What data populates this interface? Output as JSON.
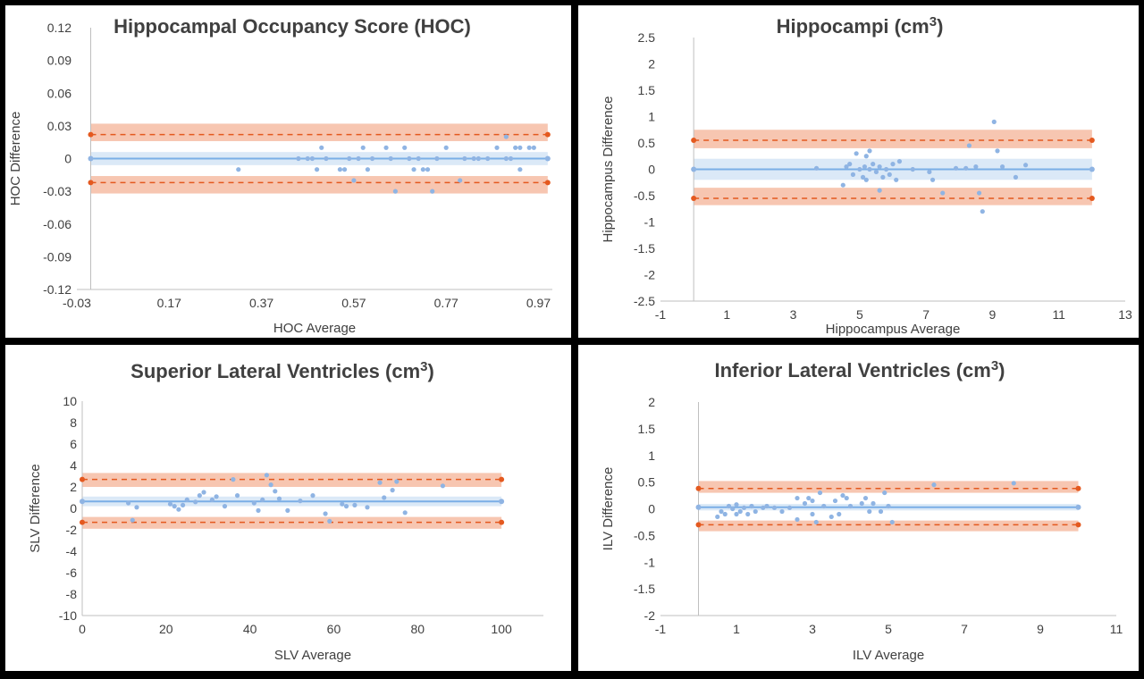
{
  "chart_data": [
    {
      "type": "scatter",
      "title": "Hippocampal Occupancy Score (HOC)",
      "title_superscript": "",
      "title_suffix": "",
      "xlabel": "HOC Average",
      "ylabel": "HOC Difference",
      "xlim": [
        -0.03,
        1.0
      ],
      "ylim": [
        -0.12,
        0.12
      ],
      "xticks": [
        -0.03,
        0.17,
        0.37,
        0.57,
        0.77,
        0.97
      ],
      "yticks": [
        -0.12,
        -0.09,
        -0.06,
        -0.03,
        0,
        0.03,
        0.06,
        0.09,
        0.12
      ],
      "xtick_labels": [
        "-0.03",
        "0.17",
        "0.37",
        "0.57",
        "0.77",
        "0.97"
      ],
      "ytick_labels": [
        "-0.12",
        "-0.09",
        "-0.06",
        "-0.03",
        "0",
        "0.03",
        "0.06",
        "0.09",
        "0.12"
      ],
      "mean_line": 0.0,
      "mean_band": [
        -0.006,
        0.006
      ],
      "upper_loa": 0.022,
      "upper_band": [
        0.016,
        0.032
      ],
      "lower_loa": -0.022,
      "lower_band": [
        -0.032,
        -0.016
      ],
      "line_x_range": [
        0.0,
        0.99
      ],
      "points": [
        [
          0.32,
          -0.01
        ],
        [
          0.45,
          0.0
        ],
        [
          0.47,
          0.0
        ],
        [
          0.48,
          0.0
        ],
        [
          0.49,
          -0.01
        ],
        [
          0.5,
          0.01
        ],
        [
          0.51,
          0.0
        ],
        [
          0.54,
          -0.01
        ],
        [
          0.55,
          -0.01
        ],
        [
          0.56,
          0.0
        ],
        [
          0.57,
          -0.02
        ],
        [
          0.58,
          0.0
        ],
        [
          0.59,
          0.01
        ],
        [
          0.6,
          -0.01
        ],
        [
          0.61,
          0.0
        ],
        [
          0.64,
          0.01
        ],
        [
          0.65,
          0.0
        ],
        [
          0.66,
          -0.03
        ],
        [
          0.68,
          0.01
        ],
        [
          0.69,
          0.0
        ],
        [
          0.7,
          -0.01
        ],
        [
          0.71,
          0.0
        ],
        [
          0.72,
          -0.01
        ],
        [
          0.73,
          -0.01
        ],
        [
          0.74,
          -0.03
        ],
        [
          0.75,
          0.0
        ],
        [
          0.77,
          0.01
        ],
        [
          0.8,
          -0.02
        ],
        [
          0.81,
          0.0
        ],
        [
          0.83,
          0.0
        ],
        [
          0.84,
          0.0
        ],
        [
          0.86,
          0.0
        ],
        [
          0.88,
          0.01
        ],
        [
          0.9,
          0.02
        ],
        [
          0.9,
          0.0
        ],
        [
          0.91,
          0.0
        ],
        [
          0.92,
          0.01
        ],
        [
          0.93,
          -0.01
        ],
        [
          0.93,
          0.01
        ],
        [
          0.95,
          0.01
        ],
        [
          0.96,
          0.01
        ]
      ],
      "colors": {
        "points": "#8fb4e3",
        "mean": "#7aaee6",
        "mean_band": "#dbe9f7",
        "loa": "#e4591f",
        "loa_band": "#f7c6b1"
      }
    },
    {
      "type": "scatter",
      "title": "Hippocampi (cm",
      "title_superscript": "3",
      "title_suffix": ")",
      "xlabel": "Hippocampus Average",
      "ylabel": "Hippocampus Difference",
      "xlim": [
        -1,
        13
      ],
      "ylim": [
        -2.5,
        2.5
      ],
      "xticks": [
        -1,
        1,
        3,
        5,
        7,
        9,
        11,
        13
      ],
      "yticks": [
        -2.5,
        -2,
        -1.5,
        -1,
        -0.5,
        0,
        0.5,
        1,
        1.5,
        2,
        2.5
      ],
      "xtick_labels": [
        "-1",
        "1",
        "3",
        "5",
        "7",
        "9",
        "11",
        "13"
      ],
      "ytick_labels": [
        "-2.5",
        "-2",
        "-1.5",
        "-1",
        "-0.5",
        "0",
        "0.5",
        "1",
        "1.5",
        "2",
        "2.5"
      ],
      "mean_line": 0.0,
      "mean_band": [
        -0.2,
        0.2
      ],
      "upper_loa": 0.55,
      "upper_band": [
        0.4,
        0.75
      ],
      "lower_loa": -0.55,
      "lower_band": [
        -0.68,
        -0.35
      ],
      "line_x_range": [
        0.0,
        12.0
      ],
      "points": [
        [
          3.7,
          0.02
        ],
        [
          4.5,
          -0.3
        ],
        [
          4.6,
          0.05
        ],
        [
          4.7,
          0.1
        ],
        [
          4.8,
          -0.1
        ],
        [
          4.9,
          0.3
        ],
        [
          5.0,
          0.0
        ],
        [
          5.1,
          -0.15
        ],
        [
          5.15,
          0.05
        ],
        [
          5.2,
          0.25
        ],
        [
          5.2,
          -0.2
        ],
        [
          5.3,
          0.35
        ],
        [
          5.3,
          0.0
        ],
        [
          5.4,
          0.1
        ],
        [
          5.5,
          -0.05
        ],
        [
          5.6,
          0.05
        ],
        [
          5.6,
          -0.4
        ],
        [
          5.7,
          -0.15
        ],
        [
          5.8,
          0.0
        ],
        [
          5.9,
          -0.1
        ],
        [
          6.0,
          0.1
        ],
        [
          6.1,
          -0.2
        ],
        [
          6.2,
          0.15
        ],
        [
          6.6,
          0.0
        ],
        [
          7.1,
          -0.05
        ],
        [
          7.2,
          -0.2
        ],
        [
          7.5,
          -0.45
        ],
        [
          7.9,
          0.02
        ],
        [
          8.2,
          0.02
        ],
        [
          8.3,
          0.45
        ],
        [
          8.5,
          0.05
        ],
        [
          8.6,
          -0.45
        ],
        [
          8.7,
          -0.8
        ],
        [
          9.05,
          0.9
        ],
        [
          9.15,
          0.35
        ],
        [
          9.3,
          0.05
        ],
        [
          9.7,
          -0.15
        ],
        [
          10.0,
          0.08
        ]
      ],
      "colors": {
        "points": "#8fb4e3",
        "mean": "#7aaee6",
        "mean_band": "#dbe9f7",
        "loa": "#e4591f",
        "loa_band": "#f7c6b1"
      }
    },
    {
      "type": "scatter",
      "title": "Superior Lateral Ventricles (cm",
      "title_superscript": "3",
      "title_suffix": ")",
      "xlabel": "SLV Average",
      "ylabel": "SLV Difference",
      "xlim": [
        0,
        110
      ],
      "ylim": [
        -10,
        10
      ],
      "xticks": [
        0,
        20,
        40,
        60,
        80,
        100
      ],
      "yticks": [
        -10,
        -8,
        -6,
        -4,
        -2,
        0,
        2,
        4,
        6,
        8,
        10
      ],
      "xtick_labels": [
        "0",
        "20",
        "40",
        "60",
        "80",
        "100"
      ],
      "ytick_labels": [
        "-10",
        "-8",
        "-6",
        "-4",
        "-2",
        "0",
        "2",
        "4",
        "6",
        "8",
        "10"
      ],
      "mean_line": 0.65,
      "mean_band": [
        0.2,
        1.1
      ],
      "upper_loa": 2.7,
      "upper_band": [
        2.0,
        3.3
      ],
      "lower_loa": -1.3,
      "lower_band": [
        -1.9,
        -0.8
      ],
      "line_x_range": [
        0,
        100
      ],
      "points": [
        [
          11,
          0.5
        ],
        [
          12,
          -1.1
        ],
        [
          13,
          0.1
        ],
        [
          21,
          0.4
        ],
        [
          22,
          0.2
        ],
        [
          23,
          -0.1
        ],
        [
          24,
          0.3
        ],
        [
          25,
          0.8
        ],
        [
          27,
          0.6
        ],
        [
          28,
          1.2
        ],
        [
          29,
          1.5
        ],
        [
          31,
          0.8
        ],
        [
          32,
          1.1
        ],
        [
          34,
          0.2
        ],
        [
          36,
          2.7
        ],
        [
          37,
          1.2
        ],
        [
          41,
          0.5
        ],
        [
          42,
          -0.2
        ],
        [
          43,
          0.8
        ],
        [
          44,
          3.1
        ],
        [
          45,
          2.2
        ],
        [
          46,
          1.6
        ],
        [
          47,
          0.9
        ],
        [
          49,
          -0.2
        ],
        [
          52,
          0.7
        ],
        [
          55,
          1.2
        ],
        [
          58,
          -0.5
        ],
        [
          59,
          -1.2
        ],
        [
          62,
          0.4
        ],
        [
          63,
          0.2
        ],
        [
          65,
          0.3
        ],
        [
          68,
          0.1
        ],
        [
          71,
          2.4
        ],
        [
          72,
          1.0
        ],
        [
          74,
          1.7
        ],
        [
          75,
          2.5
        ],
        [
          77,
          -0.4
        ],
        [
          86,
          2.1
        ]
      ],
      "colors": {
        "points": "#8fb4e3",
        "mean": "#7aaee6",
        "mean_band": "#dbe9f7",
        "loa": "#e4591f",
        "loa_band": "#f7c6b1"
      }
    },
    {
      "type": "scatter",
      "title": "Inferior Lateral Ventricles (cm",
      "title_superscript": "3",
      "title_suffix": ")",
      "xlabel": "ILV Average",
      "ylabel": "ILV Difference",
      "xlim": [
        -1,
        11
      ],
      "ylim": [
        -2,
        2
      ],
      "xticks": [
        -1,
        1,
        3,
        5,
        7,
        9,
        11
      ],
      "yticks": [
        -2,
        -1.5,
        -1,
        -0.5,
        0,
        0.5,
        1,
        1.5,
        2
      ],
      "xtick_labels": [
        "-1",
        "1",
        "3",
        "5",
        "7",
        "9",
        "11"
      ],
      "ytick_labels": [
        "-2",
        "-1.5",
        "-1",
        "-0.5",
        "0",
        "0.5",
        "1",
        "1.5",
        "2"
      ],
      "mean_line": 0.03,
      "mean_band": [
        -0.03,
        0.09
      ],
      "upper_loa": 0.38,
      "upper_band": [
        0.3,
        0.52
      ],
      "lower_loa": -0.3,
      "lower_band": [
        -0.42,
        -0.22
      ],
      "line_x_range": [
        0,
        10
      ],
      "points": [
        [
          0.5,
          -0.15
        ],
        [
          0.6,
          -0.05
        ],
        [
          0.7,
          -0.1
        ],
        [
          0.8,
          0.05
        ],
        [
          0.9,
          0.0
        ],
        [
          1.0,
          -0.1
        ],
        [
          1.0,
          0.08
        ],
        [
          1.1,
          -0.05
        ],
        [
          1.2,
          0.02
        ],
        [
          1.3,
          -0.1
        ],
        [
          1.4,
          0.05
        ],
        [
          1.5,
          -0.05
        ],
        [
          1.7,
          0.02
        ],
        [
          1.8,
          0.05
        ],
        [
          2.0,
          0.02
        ],
        [
          2.2,
          -0.05
        ],
        [
          2.4,
          0.02
        ],
        [
          2.6,
          0.2
        ],
        [
          2.6,
          -0.2
        ],
        [
          2.8,
          0.1
        ],
        [
          2.9,
          0.2
        ],
        [
          3.0,
          -0.1
        ],
        [
          3.0,
          0.15
        ],
        [
          3.1,
          -0.25
        ],
        [
          3.2,
          0.3
        ],
        [
          3.3,
          0.05
        ],
        [
          3.5,
          -0.15
        ],
        [
          3.6,
          0.15
        ],
        [
          3.7,
          -0.1
        ],
        [
          3.8,
          0.25
        ],
        [
          3.9,
          0.2
        ],
        [
          4.0,
          0.05
        ],
        [
          4.3,
          0.1
        ],
        [
          4.4,
          0.2
        ],
        [
          4.5,
          -0.05
        ],
        [
          4.6,
          0.1
        ],
        [
          4.8,
          -0.05
        ],
        [
          4.9,
          0.3
        ],
        [
          5.0,
          0.05
        ],
        [
          5.1,
          -0.25
        ],
        [
          6.2,
          0.45
        ],
        [
          8.3,
          0.48
        ]
      ],
      "colors": {
        "points": "#8fb4e3",
        "mean": "#7aaee6",
        "mean_band": "#dbe9f7",
        "loa": "#e4591f",
        "loa_band": "#f7c6b1"
      }
    }
  ]
}
